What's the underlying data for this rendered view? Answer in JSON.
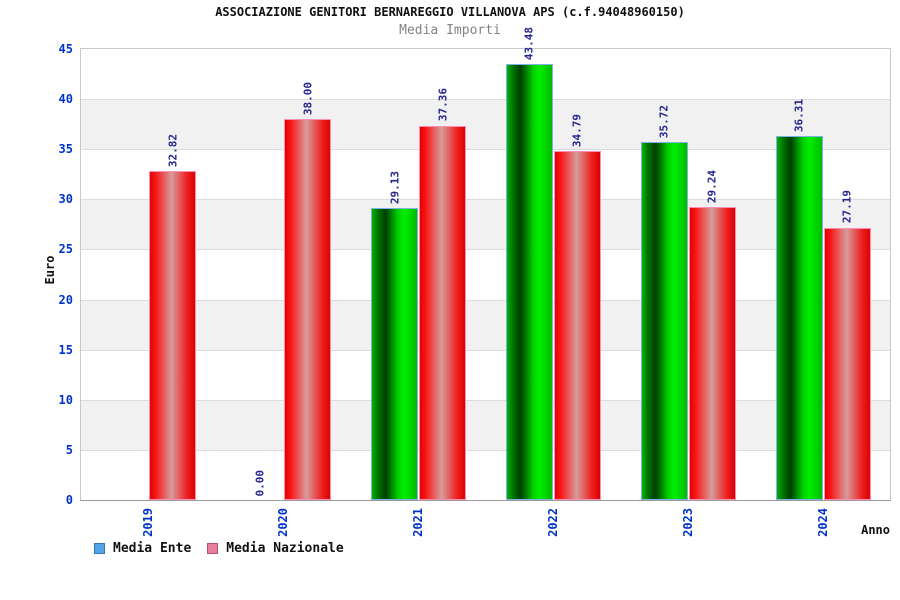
{
  "chart_data": {
    "type": "bar",
    "title": "ASSOCIAZIONE GENITORI BERNAREGGIO VILLANOVA APS (c.f.94048960150)",
    "subtitle": "Media Importi",
    "xlabel": "Anno",
    "ylabel": "Euro",
    "ylim": [
      0,
      45
    ],
    "yticks": [
      0,
      5,
      10,
      15,
      20,
      25,
      30,
      35,
      40,
      45
    ],
    "categories": [
      "2019",
      "2020",
      "2021",
      "2022",
      "2023",
      "2024"
    ],
    "series": [
      {
        "name": "Media Ente",
        "bar_color": "#00cc00",
        "border_color": "#7fb2e8",
        "legend_color": "#55a4e6",
        "values": [
          null,
          0,
          29.13,
          43.48,
          35.72,
          36.31
        ],
        "labels": [
          null,
          "0.00",
          "29.13",
          "43.48",
          "35.72",
          "36.31"
        ]
      },
      {
        "name": "Media Nazionale",
        "bar_color": "#ee1111",
        "border_color": "#ff8fb4",
        "legend_color": "#e87f9f",
        "values": [
          32.82,
          38.0,
          37.36,
          34.79,
          29.24,
          27.19
        ],
        "labels": [
          "32.82",
          "38.00",
          "37.36",
          "34.79",
          "29.24",
          "27.19"
        ]
      }
    ],
    "grid": {
      "band_color": "#f1f1f1",
      "line_color": "#dcdcdc",
      "bands_alternate": "white/gray every 5 units, gray between 40-35, 30-25, 20-15, 10-5"
    },
    "colors": {
      "value_label": "#26268f",
      "axis_tick_label": "#0033cc",
      "subtitle": "#828282"
    },
    "legend_position": "bottom-left"
  }
}
